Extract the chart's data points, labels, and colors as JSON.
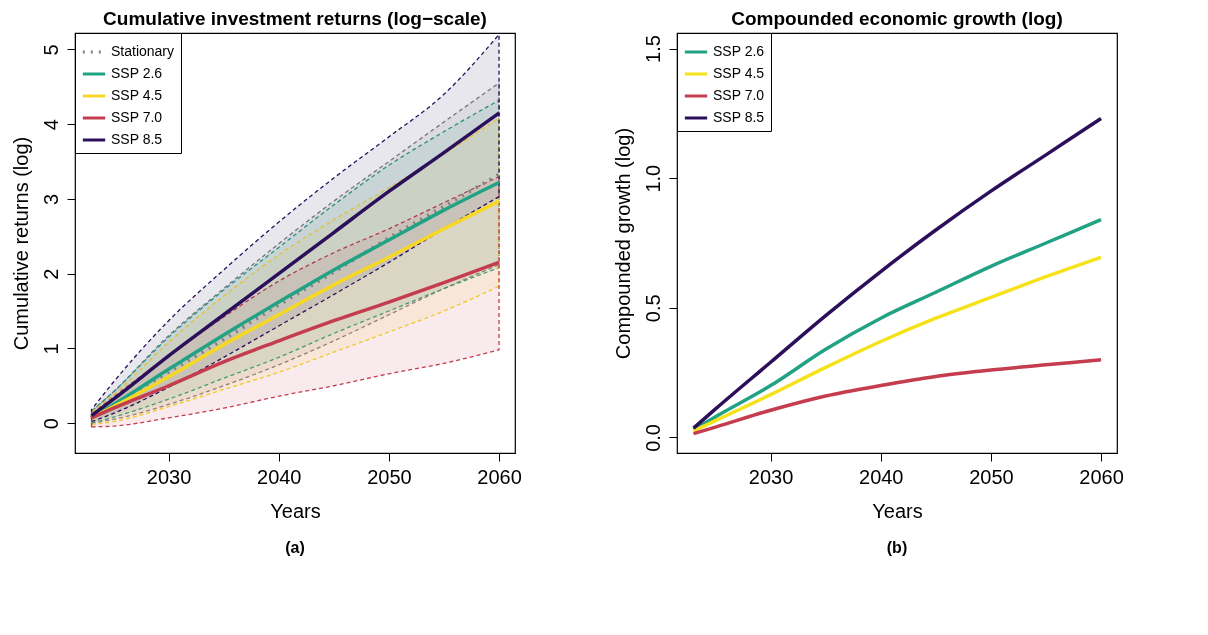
{
  "chart_data": [
    {
      "type": "line",
      "title": "Cumulative investment returns (log−scale)",
      "xlabel": "Years",
      "ylabel": "Cumulative returns (log)",
      "annotations": [
        "(a)"
      ],
      "x": [
        2023,
        2025,
        2030,
        2035,
        2040,
        2045,
        2050,
        2055,
        2060
      ],
      "xlim": [
        2021.5,
        2061.45
      ],
      "xticks": [
        2030,
        2040,
        2050,
        2060
      ],
      "ylim": [
        -0.4,
        5.22
      ],
      "yticks": [
        0,
        1,
        2,
        3,
        4,
        5
      ],
      "legend": "top left",
      "grid": false,
      "series": [
        {
          "name": "Stationary",
          "color": "#808080",
          "line_style": "dotted",
          "values": [
            0.07,
            0.24,
            0.68,
            1.12,
            1.58,
            2.02,
            2.48,
            2.9,
            3.33
          ],
          "lower": [
            0.0,
            0.05,
            0.25,
            0.5,
            0.78,
            1.1,
            1.45,
            1.8,
            2.12
          ],
          "upper": [
            0.16,
            0.42,
            1.17,
            1.8,
            2.4,
            2.97,
            3.5,
            4.03,
            4.55
          ]
        },
        {
          "name": "SSP 2.6",
          "color": "#22a284",
          "line_style": "solid",
          "values": [
            0.08,
            0.25,
            0.72,
            1.18,
            1.62,
            2.05,
            2.45,
            2.85,
            3.22
          ],
          "lower": [
            0.0,
            0.08,
            0.32,
            0.6,
            0.88,
            1.2,
            1.5,
            1.8,
            2.08
          ],
          "upper": [
            0.16,
            0.42,
            1.15,
            1.78,
            2.35,
            2.92,
            3.45,
            3.9,
            4.32
          ]
        },
        {
          "name": "SSP 4.5",
          "color": "#f5d824",
          "line_style": "solid",
          "values": [
            0.07,
            0.22,
            0.62,
            1.05,
            1.45,
            1.85,
            2.22,
            2.6,
            2.97
          ],
          "lower": [
            -0.02,
            0.02,
            0.22,
            0.45,
            0.68,
            0.95,
            1.22,
            1.5,
            1.83
          ],
          "upper": [
            0.15,
            0.38,
            1.08,
            1.7,
            2.25,
            2.72,
            3.15,
            3.6,
            4.08
          ]
        },
        {
          "name": "SSP 7.0",
          "color": "#c43c4e",
          "line_style": "solid",
          "values": [
            0.07,
            0.2,
            0.5,
            0.82,
            1.1,
            1.37,
            1.62,
            1.88,
            2.15
          ],
          "lower": [
            -0.05,
            -0.04,
            0.07,
            0.2,
            0.36,
            0.5,
            0.66,
            0.8,
            0.98
          ],
          "upper": [
            0.12,
            0.35,
            0.9,
            1.42,
            1.9,
            2.28,
            2.6,
            2.95,
            3.3
          ]
        },
        {
          "name": "SSP 8.5",
          "color": "#2c0f5a",
          "line_style": "solid",
          "values": [
            0.1,
            0.32,
            0.9,
            1.45,
            2.0,
            2.55,
            3.1,
            3.62,
            4.15
          ],
          "lower": [
            0.02,
            0.13,
            0.48,
            0.88,
            1.3,
            1.72,
            2.15,
            2.6,
            3.03
          ],
          "upper": [
            0.18,
            0.55,
            1.37,
            2.05,
            2.69,
            3.28,
            3.83,
            4.4,
            5.2
          ]
        }
      ]
    },
    {
      "type": "line",
      "title": "Compounded economic growth (log)",
      "xlabel": "Years",
      "ylabel": "Compounded growth (log)",
      "annotations": [
        "(b)"
      ],
      "x": [
        2023,
        2025,
        2030,
        2035,
        2040,
        2045,
        2050,
        2055,
        2060
      ],
      "xlim": [
        2021.5,
        2061.45
      ],
      "xticks": [
        2030,
        2040,
        2050,
        2060
      ],
      "ylim": [
        -0.06,
        1.56
      ],
      "yticks": [
        {
          "value": 0,
          "label": "0.0"
        },
        {
          "value": 0.5,
          "label": "0.5"
        },
        {
          "value": 1,
          "label": "1.0"
        },
        {
          "value": 1.5,
          "label": "1.5"
        }
      ],
      "legend": "top left",
      "grid": false,
      "series": [
        {
          "name": "SSP 2.6",
          "color": "#22a284",
          "line_style": "solid",
          "values": [
            0.03,
            0.08,
            0.2,
            0.34,
            0.46,
            0.56,
            0.66,
            0.75,
            0.84
          ]
        },
        {
          "name": "SSP 4.5",
          "color": "#f5e21a",
          "line_style": "solid",
          "values": [
            0.025,
            0.065,
            0.165,
            0.27,
            0.37,
            0.46,
            0.54,
            0.62,
            0.695
          ]
        },
        {
          "name": "SSP 7.0",
          "color": "#c43c4e",
          "line_style": "solid",
          "values": [
            0.015,
            0.04,
            0.105,
            0.16,
            0.2,
            0.235,
            0.26,
            0.28,
            0.3
          ]
        },
        {
          "name": "SSP 8.5",
          "color": "#2c0f5a",
          "line_style": "solid",
          "values": [
            0.036,
            0.11,
            0.29,
            0.47,
            0.64,
            0.8,
            0.95,
            1.09,
            1.23
          ]
        }
      ]
    }
  ]
}
